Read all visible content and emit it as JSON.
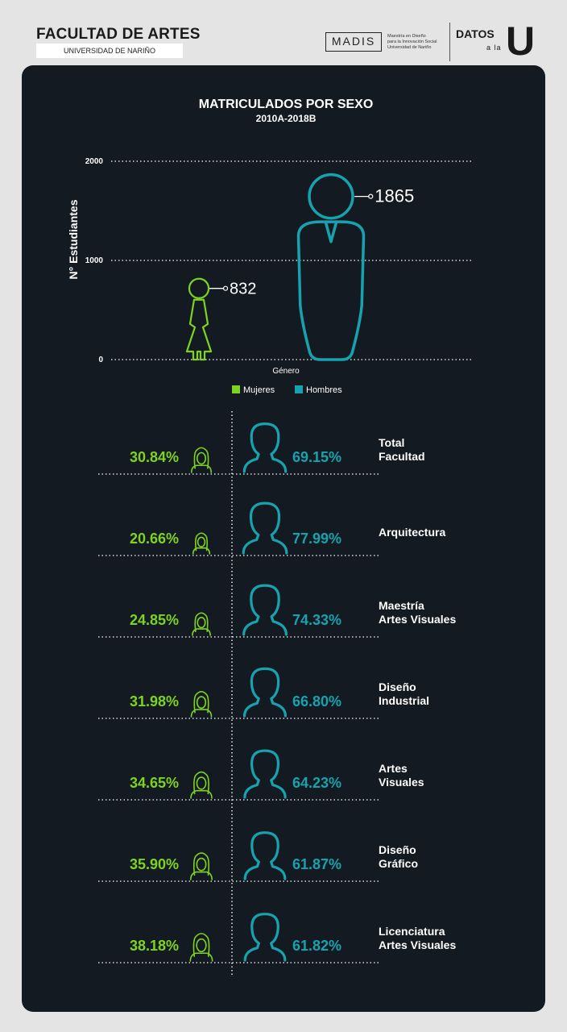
{
  "header": {
    "title": "FACULTAD DE ARTES",
    "subtitle": "UNIVERSIDAD DE NARIÑO",
    "madis_logo": "MADIS",
    "madis_lines": [
      "Maestría en Diseño",
      "para la Innovación Social",
      "Universidad de Nariño"
    ],
    "datos": "DATOS",
    "ala": "a la",
    "u": "U"
  },
  "chart_data": [
    {
      "type": "bar",
      "title": "MATRICULADOS POR SEXO",
      "subtitle": "2010A-2018B",
      "xlabel": "Género",
      "ylabel": "N° Estudiantes",
      "ylim": [
        0,
        2000
      ],
      "yticks": [
        0,
        1000,
        2000
      ],
      "categories": [
        "Mujeres",
        "Hombres"
      ],
      "values": [
        832,
        1865
      ],
      "legend": [
        "Mujeres",
        "Hombres"
      ],
      "legend_position": "bottom",
      "colors": {
        "mujeres": "#7ed321",
        "hombres": "#17a2ad"
      }
    },
    {
      "type": "table",
      "rows": [
        {
          "label_lines": [
            "Total",
            "Facultad"
          ],
          "mujeres": 30.84,
          "hombres": 69.15,
          "mujeres_label": "30.84%",
          "hombres_label": "69.15%"
        },
        {
          "label_lines": [
            "Arquitectura"
          ],
          "mujeres": 20.66,
          "hombres": 77.99,
          "mujeres_label": "20.66%",
          "hombres_label": "77.99%"
        },
        {
          "label_lines": [
            "Maestría",
            "Artes Visuales"
          ],
          "mujeres": 24.85,
          "hombres": 74.33,
          "mujeres_label": "24.85%",
          "hombres_label": "74.33%"
        },
        {
          "label_lines": [
            "Diseño",
            "Industrial"
          ],
          "mujeres": 31.98,
          "hombres": 66.8,
          "mujeres_label": "31.98%",
          "hombres_label": "66.80%"
        },
        {
          "label_lines": [
            "Artes",
            "Visuales"
          ],
          "mujeres": 34.65,
          "hombres": 64.23,
          "mujeres_label": "34.65%",
          "hombres_label": "64.23%"
        },
        {
          "label_lines": [
            "Diseño",
            "Gráfico"
          ],
          "mujeres": 35.9,
          "hombres": 61.87,
          "mujeres_label": "35.90%",
          "hombres_label": "61.87%"
        },
        {
          "label_lines": [
            "Licenciatura",
            "Artes Visuales"
          ],
          "mujeres": 38.18,
          "hombres": 61.82,
          "mujeres_label": "38.18%",
          "hombres_label": "61.82%"
        }
      ]
    }
  ]
}
